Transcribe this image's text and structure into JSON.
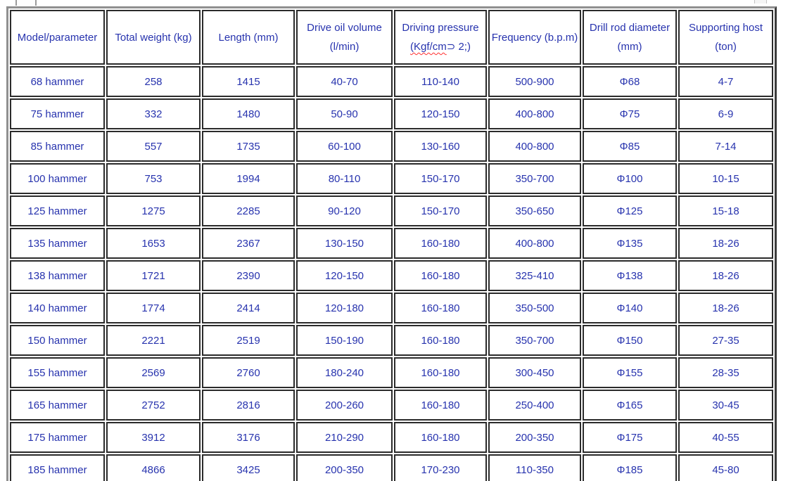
{
  "styles": {
    "text_color": "#2733ae",
    "cell_border_color": "#2b2b2b",
    "outer_border_color": "#8f8f8f",
    "background_color": "#ffffff",
    "spellcheck_underline_color": "#ff2f2f"
  },
  "chart_data": {
    "type": "table",
    "title": "",
    "columns": [
      {
        "label": "Model/parameter"
      },
      {
        "label": "Total weight (kg)"
      },
      {
        "label": "Length (mm)"
      },
      {
        "label": "Drive oil volume\n(l/min)"
      },
      {
        "label": "Driving pressure\n(Kgf/cm⊃ 2;)",
        "spellcheck_underline": "(Kgf/cm"
      },
      {
        "label": "Frequency (b.p.m)"
      },
      {
        "label": "Drill rod diameter\n(mm)"
      },
      {
        "label": "Supporting host\n(ton)"
      }
    ],
    "rows": [
      [
        "68 hammer",
        "258",
        "1415",
        "40-70",
        "110-140",
        "500-900",
        "Φ68",
        "4-7"
      ],
      [
        "75 hammer",
        "332",
        "1480",
        "50-90",
        "120-150",
        "400-800",
        "Φ75",
        "6-9"
      ],
      [
        "85 hammer",
        "557",
        "1735",
        "60-100",
        "130-160",
        "400-800",
        "Φ85",
        "7-14"
      ],
      [
        "100 hammer",
        "753",
        "1994",
        "80-110",
        "150-170",
        "350-700",
        "Φ100",
        "10-15"
      ],
      [
        "125 hammer",
        "1275",
        "2285",
        "90-120",
        "150-170",
        "350-650",
        "Φ125",
        "15-18"
      ],
      [
        "135 hammer",
        "1653",
        "2367",
        "130-150",
        "160-180",
        "400-800",
        "Φ135",
        "18-26"
      ],
      [
        "138 hammer",
        "1721",
        "2390",
        "120-150",
        "160-180",
        "325-410",
        "Φ138",
        "18-26"
      ],
      [
        "140 hammer",
        "1774",
        "2414",
        "120-180",
        "160-180",
        "350-500",
        "Φ140",
        "18-26"
      ],
      [
        "150 hammer",
        "2221",
        "2519",
        "150-190",
        "160-180",
        "350-700",
        "Φ150",
        "27-35"
      ],
      [
        "155 hammer",
        "2569",
        "2760",
        "180-240",
        "160-180",
        "300-450",
        "Φ155",
        "28-35"
      ],
      [
        "165 hammer",
        "2752",
        "2816",
        "200-260",
        "160-180",
        "250-400",
        "Φ165",
        "30-45"
      ],
      [
        "175 hammer",
        "3912",
        "3176",
        "210-290",
        "160-180",
        "200-350",
        "Φ175",
        "40-55"
      ],
      [
        "185 hammer",
        "4866",
        "3425",
        "200-350",
        "170-230",
        "110-350",
        "Φ185",
        "45-80"
      ]
    ]
  }
}
